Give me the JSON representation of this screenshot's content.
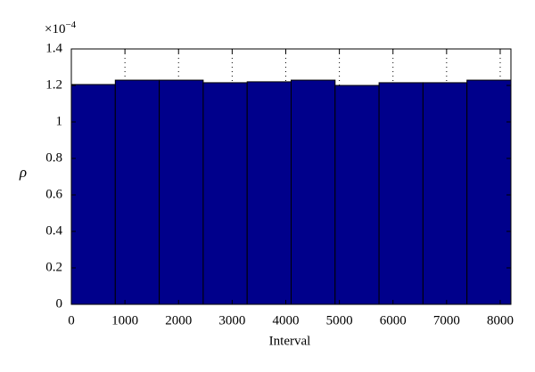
{
  "chart_data": {
    "type": "histogram",
    "bins": [
      0,
      820,
      1640,
      2460,
      3280,
      4100,
      4920,
      5740,
      6560,
      7380,
      8200
    ],
    "values": [
      1.205,
      1.229,
      1.229,
      1.215,
      1.22,
      1.229,
      1.2,
      1.215,
      1.215,
      1.229
    ],
    "color": "#00008b",
    "edge_color": "#000000",
    "xlim": [
      0,
      8200
    ],
    "xticks": [
      0,
      1000,
      2000,
      3000,
      4000,
      5000,
      6000,
      7000,
      8000
    ],
    "ylim": [
      0,
      1.4
    ],
    "yticks": [
      0,
      0.2,
      0.4,
      0.6,
      0.8,
      1,
      1.2,
      1.4
    ],
    "y_multiplier": {
      "base": "×10",
      "exponent": "−4"
    },
    "xlabel": "Interval",
    "ylabel": "ρ",
    "grid": "x"
  }
}
